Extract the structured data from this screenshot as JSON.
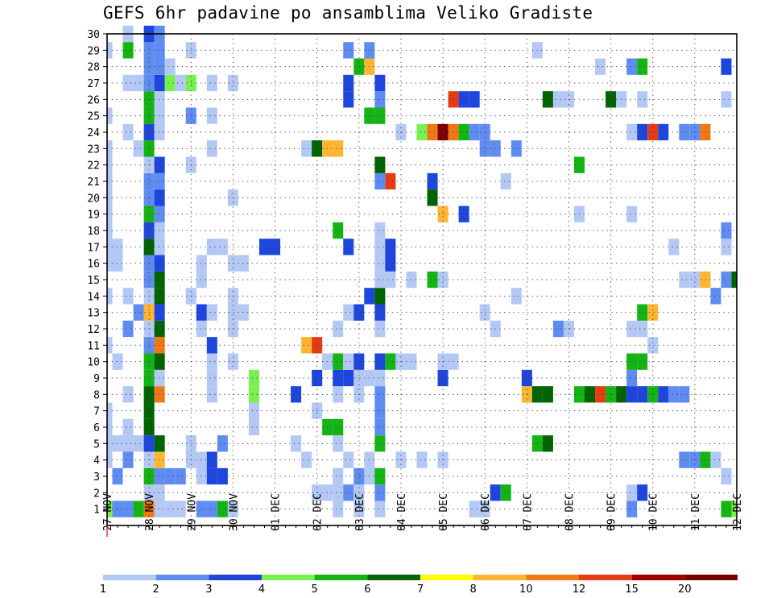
{
  "title": "GEFS 6hr padavine po ansamblima Veliko Gradiste",
  "chart_data": {
    "type": "heatmap",
    "title": "GEFS 6hr padavine po ansamblima Veliko Gradiste",
    "xlabel": "",
    "ylabel": "",
    "x_tick_labels": [
      "27 NOV",
      "28 NOV",
      "29 NOV",
      "30 NOV",
      "01 DEC",
      "02 DEC",
      "03 DEC",
      "04 DEC",
      "05 DEC",
      "06 DEC",
      "07 DEC",
      "08 DEC",
      "09 DEC",
      "10 DEC",
      "11 DEC",
      "12 DEC"
    ],
    "x_range_steps": [
      0,
      60
    ],
    "y_range_members": [
      0,
      30
    ],
    "y_tick_labels": [
      "1",
      "2",
      "3",
      "4",
      "5",
      "6",
      "7",
      "8",
      "9",
      "10",
      "11",
      "12",
      "13",
      "14",
      "15",
      "16",
      "17",
      "18",
      "19",
      "20",
      "21",
      "22",
      "23",
      "24",
      "25",
      "26",
      "27",
      "28",
      "29",
      "30"
    ],
    "grid": true,
    "legend_position": "bottom",
    "legend_bounds": [
      1,
      2,
      3,
      4,
      5,
      6,
      7,
      8,
      10,
      12,
      15,
      20
    ],
    "legend_colors": [
      "#b4c8f5",
      "#5f8cf0",
      "#1e46dc",
      "#78f050",
      "#14b414",
      "#006400",
      "#ffff00",
      "#ffb432",
      "#f07814",
      "#e63c14",
      "#a00000",
      "#780000"
    ],
    "cells": [
      [
        0,
        1,
        4
      ],
      [
        0,
        4,
        1
      ],
      [
        0,
        5,
        1
      ],
      [
        0,
        6,
        1
      ],
      [
        0,
        7,
        1
      ],
      [
        0,
        11,
        1
      ],
      [
        0,
        14,
        1
      ],
      [
        0,
        16,
        1
      ],
      [
        0,
        17,
        1
      ],
      [
        0,
        18,
        1
      ],
      [
        0,
        19,
        1
      ],
      [
        0,
        20,
        1
      ],
      [
        0,
        21,
        1
      ],
      [
        0,
        22,
        1
      ],
      [
        0,
        23,
        1
      ],
      [
        0,
        25,
        1
      ],
      [
        0,
        29,
        1
      ],
      [
        1,
        1,
        2
      ],
      [
        1,
        3,
        2
      ],
      [
        1,
        5,
        1
      ],
      [
        1,
        10,
        1
      ],
      [
        1,
        16,
        1
      ],
      [
        1,
        17,
        1
      ],
      [
        2,
        1,
        2
      ],
      [
        2,
        4,
        2
      ],
      [
        2,
        12,
        2
      ],
      [
        2,
        5,
        1
      ],
      [
        2,
        6,
        1
      ],
      [
        2,
        8,
        1
      ],
      [
        2,
        14,
        1
      ],
      [
        2,
        24,
        1
      ],
      [
        2,
        27,
        1
      ],
      [
        2,
        29,
        5
      ],
      [
        2,
        30,
        1
      ],
      [
        3,
        1,
        5
      ],
      [
        3,
        5,
        1
      ],
      [
        3,
        13,
        2
      ],
      [
        3,
        23,
        1
      ],
      [
        3,
        27,
        1
      ],
      [
        4,
        1,
        9
      ],
      [
        4,
        2,
        1
      ],
      [
        4,
        3,
        5
      ],
      [
        4,
        4,
        1
      ],
      [
        4,
        5,
        3
      ],
      [
        4,
        6,
        6
      ],
      [
        4,
        7,
        6
      ],
      [
        4,
        8,
        6
      ],
      [
        4,
        9,
        5
      ],
      [
        4,
        10,
        5
      ],
      [
        4,
        11,
        2
      ],
      [
        4,
        12,
        1
      ],
      [
        4,
        13,
        8
      ],
      [
        4,
        14,
        1
      ],
      [
        4,
        15,
        2
      ],
      [
        4,
        16,
        2
      ],
      [
        4,
        17,
        6
      ],
      [
        4,
        18,
        3
      ],
      [
        4,
        19,
        5
      ],
      [
        4,
        20,
        2
      ],
      [
        4,
        21,
        2
      ],
      [
        4,
        22,
        1
      ],
      [
        4,
        23,
        5
      ],
      [
        4,
        24,
        3
      ],
      [
        4,
        25,
        5
      ],
      [
        4,
        26,
        5
      ],
      [
        4,
        27,
        2
      ],
      [
        4,
        28,
        2
      ],
      [
        4,
        29,
        2
      ],
      [
        4,
        30,
        3
      ],
      [
        5,
        1,
        1
      ],
      [
        5,
        2,
        1
      ],
      [
        5,
        3,
        2
      ],
      [
        5,
        4,
        8
      ],
      [
        5,
        5,
        6
      ],
      [
        5,
        8,
        9
      ],
      [
        5,
        9,
        1
      ],
      [
        5,
        10,
        6
      ],
      [
        5,
        11,
        9
      ],
      [
        5,
        12,
        6
      ],
      [
        5,
        13,
        3
      ],
      [
        5,
        14,
        6
      ],
      [
        5,
        15,
        6
      ],
      [
        5,
        16,
        3
      ],
      [
        5,
        17,
        1
      ],
      [
        5,
        18,
        1
      ],
      [
        5,
        19,
        2
      ],
      [
        5,
        20,
        3
      ],
      [
        5,
        21,
        2
      ],
      [
        5,
        22,
        3
      ],
      [
        5,
        24,
        1
      ],
      [
        5,
        25,
        1
      ],
      [
        5,
        26,
        1
      ],
      [
        5,
        27,
        3
      ],
      [
        5,
        28,
        2
      ],
      [
        5,
        29,
        2
      ],
      [
        5,
        30,
        2
      ],
      [
        6,
        1,
        1
      ],
      [
        6,
        3,
        2
      ],
      [
        6,
        27,
        4
      ],
      [
        6,
        28,
        1
      ],
      [
        7,
        1,
        1
      ],
      [
        7,
        3,
        2
      ],
      [
        7,
        27,
        1
      ],
      [
        8,
        4,
        1
      ],
      [
        8,
        5,
        1
      ],
      [
        8,
        14,
        1
      ],
      [
        8,
        22,
        1
      ],
      [
        8,
        25,
        2
      ],
      [
        8,
        27,
        4
      ],
      [
        8,
        29,
        1
      ],
      [
        9,
        1,
        2
      ],
      [
        9,
        3,
        1
      ],
      [
        9,
        4,
        1
      ],
      [
        9,
        12,
        1
      ],
      [
        9,
        13,
        3
      ],
      [
        9,
        15,
        1
      ],
      [
        9,
        16,
        1
      ],
      [
        10,
        1,
        2
      ],
      [
        10,
        3,
        3
      ],
      [
        10,
        4,
        3
      ],
      [
        10,
        8,
        1
      ],
      [
        10,
        9,
        1
      ],
      [
        10,
        10,
        1
      ],
      [
        10,
        11,
        3
      ],
      [
        10,
        13,
        1
      ],
      [
        10,
        17,
        1
      ],
      [
        10,
        23,
        1
      ],
      [
        10,
        25,
        1
      ],
      [
        10,
        27,
        1
      ],
      [
        11,
        1,
        5
      ],
      [
        11,
        3,
        3
      ],
      [
        11,
        5,
        2
      ],
      [
        11,
        17,
        1
      ],
      [
        12,
        1,
        1
      ],
      [
        12,
        10,
        1
      ],
      [
        12,
        12,
        1
      ],
      [
        12,
        13,
        1
      ],
      [
        12,
        14,
        1
      ],
      [
        12,
        16,
        1
      ],
      [
        12,
        20,
        1
      ],
      [
        12,
        27,
        1
      ],
      [
        13,
        13,
        1
      ],
      [
        13,
        16,
        1
      ],
      [
        14,
        6,
        1
      ],
      [
        14,
        7,
        1
      ],
      [
        14,
        8,
        4
      ],
      [
        14,
        9,
        4
      ],
      [
        15,
        17,
        3
      ],
      [
        16,
        17,
        3
      ],
      [
        18,
        5,
        1
      ],
      [
        18,
        8,
        3
      ],
      [
        19,
        4,
        1
      ],
      [
        19,
        11,
        8
      ],
      [
        19,
        23,
        1
      ],
      [
        20,
        2,
        1
      ],
      [
        20,
        7,
        1
      ],
      [
        20,
        11,
        10
      ],
      [
        20,
        9,
        3
      ],
      [
        20,
        23,
        6
      ],
      [
        21,
        2,
        1
      ],
      [
        21,
        6,
        5
      ],
      [
        21,
        10,
        1
      ],
      [
        21,
        23,
        8
      ],
      [
        22,
        1,
        1
      ],
      [
        22,
        2,
        1
      ],
      [
        22,
        3,
        1
      ],
      [
        22,
        5,
        1
      ],
      [
        22,
        6,
        5
      ],
      [
        22,
        8,
        1
      ],
      [
        22,
        9,
        3
      ],
      [
        22,
        10,
        5
      ],
      [
        22,
        12,
        1
      ],
      [
        22,
        18,
        5
      ],
      [
        22,
        23,
        8
      ],
      [
        23,
        2,
        2
      ],
      [
        23,
        4,
        1
      ],
      [
        23,
        9,
        3
      ],
      [
        23,
        10,
        1
      ],
      [
        23,
        13,
        1
      ],
      [
        23,
        17,
        3
      ],
      [
        23,
        26,
        3
      ],
      [
        23,
        27,
        3
      ],
      [
        23,
        29,
        2
      ],
      [
        24,
        1,
        1
      ],
      [
        24,
        2,
        1
      ],
      [
        24,
        3,
        2
      ],
      [
        24,
        8,
        1
      ],
      [
        24,
        9,
        1
      ],
      [
        24,
        10,
        3
      ],
      [
        24,
        13,
        3
      ],
      [
        24,
        28,
        5
      ],
      [
        25,
        3,
        1
      ],
      [
        25,
        4,
        1
      ],
      [
        25,
        9,
        1
      ],
      [
        25,
        14,
        3
      ],
      [
        25,
        25,
        5
      ],
      [
        25,
        28,
        8
      ],
      [
        25,
        29,
        2
      ],
      [
        26,
        1,
        1
      ],
      [
        26,
        2,
        2
      ],
      [
        26,
        3,
        5
      ],
      [
        26,
        5,
        5
      ],
      [
        26,
        6,
        2
      ],
      [
        26,
        7,
        2
      ],
      [
        26,
        8,
        2
      ],
      [
        26,
        9,
        1
      ],
      [
        26,
        10,
        3
      ],
      [
        26,
        12,
        1
      ],
      [
        26,
        13,
        3
      ],
      [
        26,
        14,
        6
      ],
      [
        26,
        15,
        1
      ],
      [
        26,
        16,
        1
      ],
      [
        26,
        17,
        1
      ],
      [
        26,
        18,
        1
      ],
      [
        26,
        21,
        2
      ],
      [
        26,
        22,
        6
      ],
      [
        26,
        25,
        5
      ],
      [
        26,
        26,
        2
      ],
      [
        26,
        27,
        3
      ],
      [
        27,
        10,
        5
      ],
      [
        27,
        15,
        1
      ],
      [
        27,
        16,
        3
      ],
      [
        27,
        17,
        3
      ],
      [
        27,
        21,
        10
      ],
      [
        28,
        4,
        1
      ],
      [
        28,
        10,
        1
      ],
      [
        28,
        24,
        1
      ],
      [
        29,
        10,
        1
      ],
      [
        29,
        15,
        1
      ],
      [
        30,
        4,
        1
      ],
      [
        30,
        24,
        4
      ],
      [
        31,
        15,
        5
      ],
      [
        31,
        21,
        3
      ],
      [
        31,
        24,
        9
      ],
      [
        31,
        20,
        6
      ],
      [
        32,
        4,
        1
      ],
      [
        32,
        9,
        3
      ],
      [
        32,
        10,
        1
      ],
      [
        32,
        15,
        1
      ],
      [
        32,
        19,
        8
      ],
      [
        32,
        24,
        12
      ],
      [
        33,
        10,
        1
      ],
      [
        33,
        24,
        9
      ],
      [
        33,
        26,
        10
      ],
      [
        34,
        19,
        3
      ],
      [
        34,
        24,
        5
      ],
      [
        34,
        26,
        3
      ],
      [
        35,
        1,
        1
      ],
      [
        35,
        24,
        2
      ],
      [
        35,
        26,
        3
      ],
      [
        36,
        1,
        1
      ],
      [
        36,
        13,
        1
      ],
      [
        36,
        23,
        2
      ],
      [
        36,
        24,
        2
      ],
      [
        37,
        2,
        3
      ],
      [
        37,
        12,
        1
      ],
      [
        37,
        23,
        2
      ],
      [
        38,
        2,
        5
      ],
      [
        38,
        21,
        1
      ],
      [
        39,
        14,
        1
      ],
      [
        39,
        23,
        2
      ],
      [
        40,
        8,
        8
      ],
      [
        40,
        9,
        3
      ],
      [
        41,
        5,
        5
      ],
      [
        41,
        8,
        6
      ],
      [
        41,
        29,
        1
      ],
      [
        42,
        5,
        6
      ],
      [
        42,
        8,
        6
      ],
      [
        42,
        26,
        6
      ],
      [
        43,
        12,
        2
      ],
      [
        43,
        26,
        1
      ],
      [
        44,
        12,
        1
      ],
      [
        44,
        26,
        1
      ],
      [
        45,
        8,
        5
      ],
      [
        45,
        19,
        1
      ],
      [
        45,
        22,
        5
      ],
      [
        46,
        8,
        6
      ],
      [
        47,
        8,
        10
      ],
      [
        47,
        28,
        1
      ],
      [
        48,
        8,
        5
      ],
      [
        48,
        26,
        6
      ],
      [
        49,
        8,
        6
      ],
      [
        49,
        26,
        1
      ],
      [
        50,
        1,
        2
      ],
      [
        50,
        2,
        1
      ],
      [
        50,
        8,
        3
      ],
      [
        50,
        9,
        2
      ],
      [
        50,
        10,
        5
      ],
      [
        50,
        12,
        1
      ],
      [
        50,
        19,
        1
      ],
      [
        50,
        24,
        1
      ],
      [
        50,
        28,
        2
      ],
      [
        51,
        2,
        3
      ],
      [
        51,
        8,
        3
      ],
      [
        51,
        10,
        5
      ],
      [
        51,
        12,
        1
      ],
      [
        51,
        13,
        5
      ],
      [
        51,
        24,
        3
      ],
      [
        51,
        26,
        1
      ],
      [
        51,
        28,
        5
      ],
      [
        52,
        8,
        5
      ],
      [
        52,
        11,
        1
      ],
      [
        52,
        13,
        8
      ],
      [
        52,
        24,
        10
      ],
      [
        53,
        8,
        3
      ],
      [
        53,
        24,
        3
      ],
      [
        54,
        8,
        2
      ],
      [
        54,
        17,
        1
      ],
      [
        55,
        4,
        2
      ],
      [
        55,
        8,
        2
      ],
      [
        55,
        15,
        1
      ],
      [
        55,
        24,
        2
      ],
      [
        56,
        4,
        2
      ],
      [
        56,
        15,
        1
      ],
      [
        56,
        24,
        2
      ],
      [
        57,
        4,
        5
      ],
      [
        57,
        15,
        8
      ],
      [
        57,
        24,
        9
      ],
      [
        58,
        4,
        1
      ],
      [
        58,
        14,
        2
      ],
      [
        59,
        1,
        5
      ],
      [
        59,
        3,
        1
      ],
      [
        59,
        15,
        2
      ],
      [
        59,
        17,
        1
      ],
      [
        59,
        18,
        2
      ],
      [
        59,
        26,
        1
      ],
      [
        59,
        28,
        3
      ],
      [
        60,
        1,
        4
      ],
      [
        60,
        15,
        6
      ]
    ]
  }
}
